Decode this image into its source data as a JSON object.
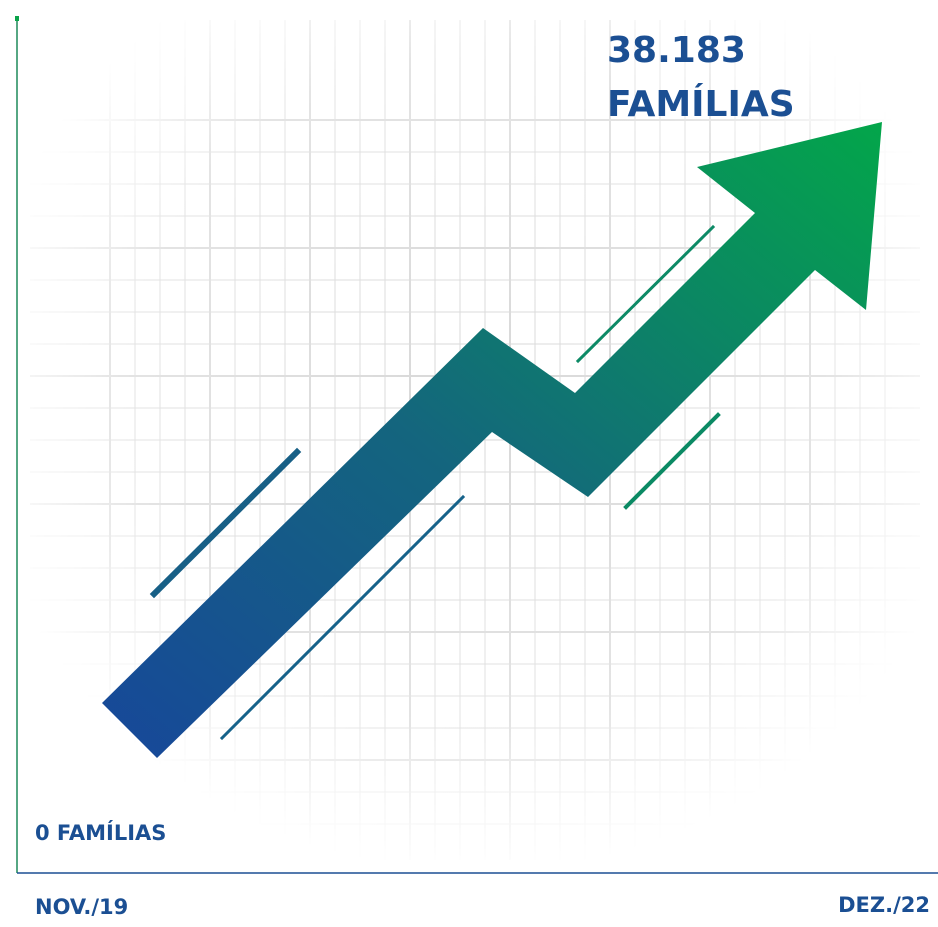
{
  "value_label": {
    "number": "38.183",
    "unit": "FAMÍLIAS"
  },
  "start_label": "0 FAMÍLIAS",
  "start_date": "NOV./19",
  "end_date": "DEZ./22"
}
